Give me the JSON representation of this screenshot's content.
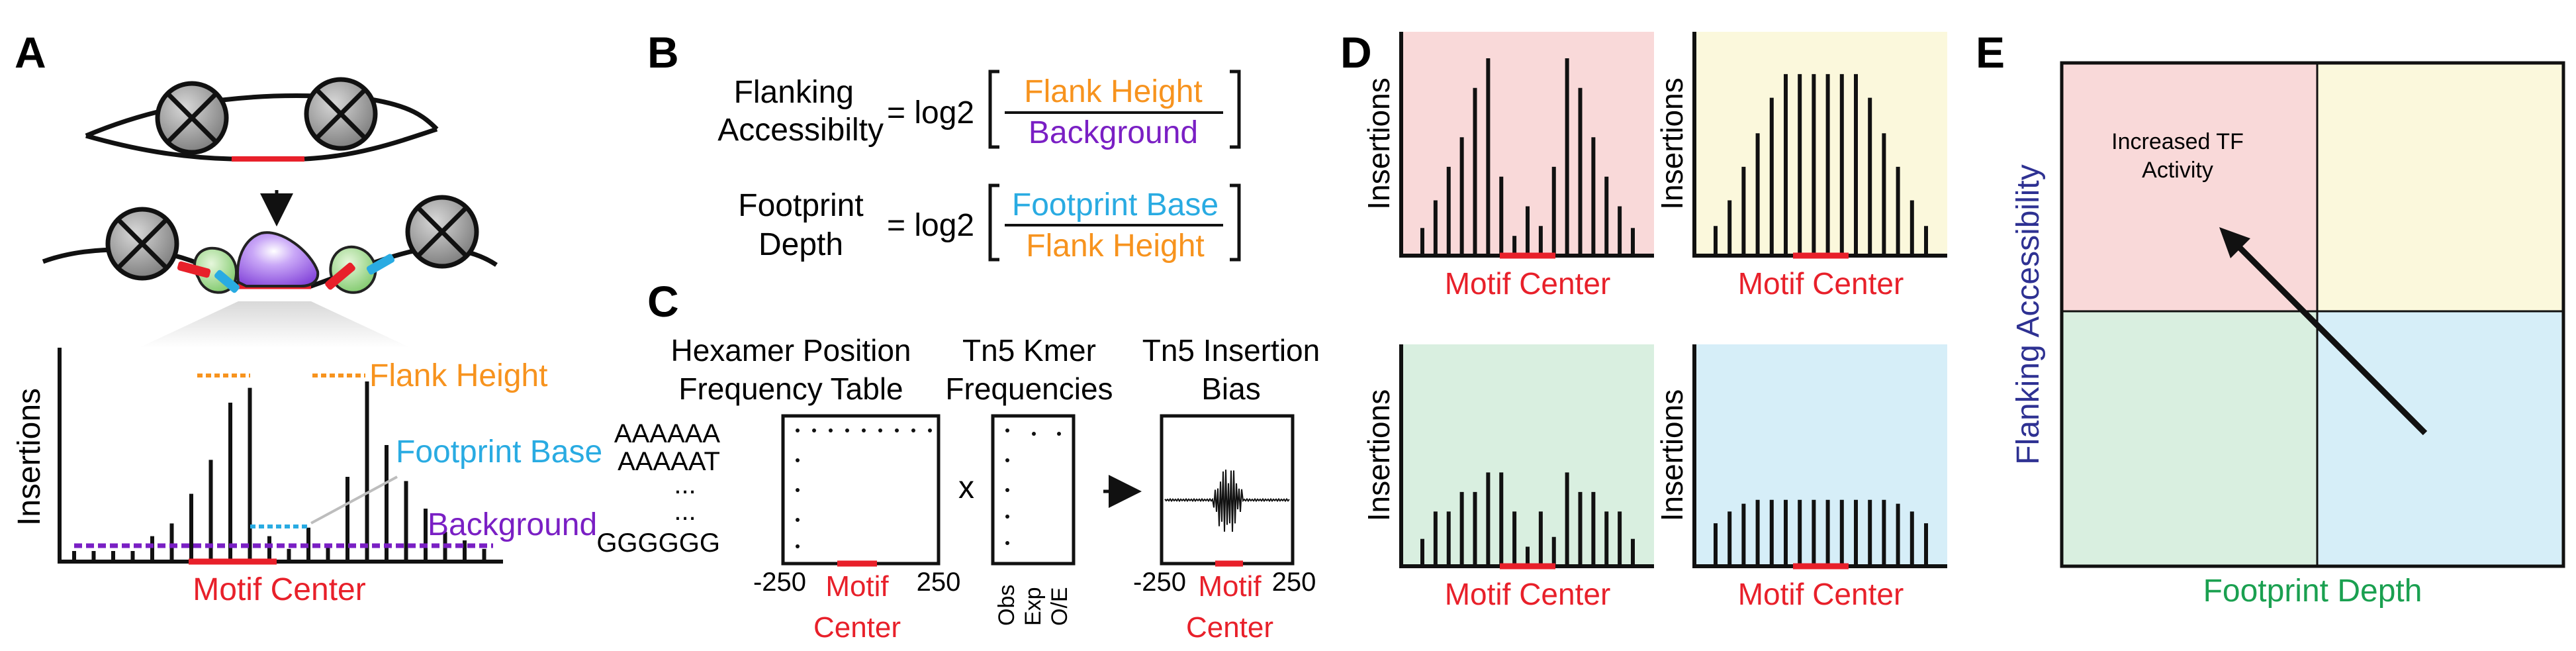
{
  "colors": {
    "flank": "#f7931e",
    "footprint": "#29abe2",
    "background": "#7a1fc4",
    "motif": "#e8202a",
    "axis_label": "#2e3192",
    "depth_label": "#1aa050",
    "bg_pink": "#f9d9d9",
    "bg_yellow": "#fbf8dc",
    "bg_green": "#d9efe0",
    "bg_blue": "#d6eef8"
  },
  "panel_labels": {
    "a": "A",
    "b": "B",
    "c": "C",
    "d": "D",
    "e": "E"
  },
  "panel_a": {
    "insertions_label": "Insertions",
    "flank_height": "Flank Height",
    "footprint_base": "Footprint Base",
    "background": "Background",
    "motif_center": "Motif Center",
    "bar_heights": [
      0.05,
      0.05,
      0.05,
      0.05,
      0.12,
      0.18,
      0.32,
      0.48,
      0.75,
      0.82,
      0.12,
      0.06,
      0.16,
      0.07,
      0.4,
      0.85,
      0.55,
      0.38,
      0.25,
      0.14,
      0.1,
      0.06
    ]
  },
  "panel_b": {
    "flanking_line1": "Flanking",
    "flanking_line2": "Accessibilty",
    "equals_log2": "= log2",
    "flank_height": "Flank Height",
    "background": "Background",
    "footprint_line1": "Footprint",
    "footprint_line2": "Depth",
    "footprint_base": "Footprint Base",
    "flank_height_2": "Flank Height"
  },
  "panel_c": {
    "hexamer_line1": "Hexamer Position",
    "hexamer_line2": "Frequency Table",
    "kmer_line1": "Tn5 Kmer",
    "kmer_line2": "Frequencies",
    "bias_line1": "Tn5 Insertion",
    "bias_line2": "Bias",
    "seq_1": "AAAAAA",
    "seq_2": "AAAAAT",
    "seq_ellipsis": "...",
    "seq_last": "GGGGGG",
    "times": "x",
    "arrow": "→",
    "neg250": "-250",
    "pos250": "250",
    "motif": "Motif",
    "center": "Center",
    "neg250_b": "-250",
    "motif_b": "Motif",
    "pos250_b": "250",
    "center_b": "Center",
    "obs": "Obs",
    "exp": "Exp",
    "oe": "O/E"
  },
  "panel_d": {
    "plots": [
      {
        "bg": "pink",
        "ylabel": "Insertions",
        "xlabel": "Motif Center",
        "bars": [
          0.14,
          0.28,
          0.45,
          0.6,
          0.85,
          1.0,
          0.4,
          0.1,
          0.25,
          0.15,
          0.45,
          1.0,
          0.85,
          0.6,
          0.4,
          0.25,
          0.14
        ]
      },
      {
        "bg": "yellow",
        "ylabel": "Insertions",
        "xlabel": "Motif Center",
        "bars": [
          0.15,
          0.28,
          0.45,
          0.62,
          0.8,
          0.92,
          0.92,
          0.92,
          0.92,
          0.92,
          0.92,
          0.8,
          0.62,
          0.45,
          0.28,
          0.15
        ]
      },
      {
        "bg": "green",
        "ylabel": "Insertions",
        "xlabel": "Motif Center",
        "bars": [
          0.14,
          0.28,
          0.28,
          0.38,
          0.38,
          0.48,
          0.48,
          0.28,
          0.1,
          0.28,
          0.15,
          0.48,
          0.38,
          0.38,
          0.28,
          0.28,
          0.14
        ]
      },
      {
        "bg": "blue",
        "ylabel": "Insertions",
        "xlabel": "Motif Center",
        "bars": [
          0.22,
          0.28,
          0.32,
          0.34,
          0.34,
          0.34,
          0.34,
          0.34,
          0.34,
          0.34,
          0.34,
          0.34,
          0.34,
          0.32,
          0.28,
          0.22
        ]
      }
    ]
  },
  "panel_e": {
    "ylabel": "Flanking Accessibility",
    "xlabel": "Footprint Depth",
    "annotation_line1": "Increased TF",
    "annotation_line2": "Activity"
  }
}
